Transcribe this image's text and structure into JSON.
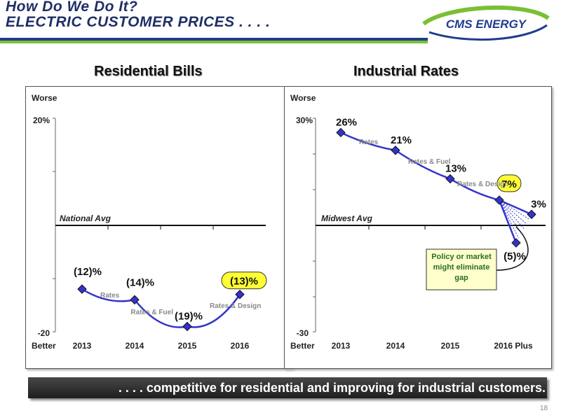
{
  "header": {
    "line1": "How Do We Do It?",
    "line2": "ELECTRIC CUSTOMER PRICES . . . ."
  },
  "logo": {
    "text": "CMS ENERGY"
  },
  "footer": {
    "banner": ". . . . competitive for residential and improving for industrial customers.",
    "page_number": "18"
  },
  "colors": {
    "navy": "#1f2f66",
    "green": "#7bbf34",
    "line": "#3333cc",
    "highlight": "#ffff33"
  },
  "chart_data": [
    {
      "type": "line",
      "title": "Residential Bills",
      "worse_label": "Worse",
      "better_label": "Better",
      "reference_label": "National Avg",
      "ylim": [
        -20,
        20
      ],
      "y_ticks": [
        "20%",
        "-20"
      ],
      "categories": [
        "2013",
        "2014",
        "2015",
        "2016"
      ],
      "points": [
        {
          "label": "(12)%",
          "value": -12
        },
        {
          "label": "(14)%",
          "value": -14
        },
        {
          "label": "(19)%",
          "value": -19
        },
        {
          "label": "(13)%",
          "value": -13,
          "highlight": true
        }
      ],
      "annotations": [
        "Rates",
        "Rates & Fuel",
        "Rates & Design"
      ]
    },
    {
      "type": "line",
      "title": "Industrial Rates",
      "worse_label": "Worse",
      "better_label": "Better",
      "reference_label": "Midwest Avg",
      "ylim": [
        -30,
        30
      ],
      "y_ticks": [
        "30%",
        "-30"
      ],
      "categories": [
        "2013",
        "2014",
        "2015",
        "2016 Plus"
      ],
      "points": [
        {
          "label": "26%",
          "value": 26
        },
        {
          "label": "21%",
          "value": 21
        },
        {
          "label": "13%",
          "value": 13
        },
        {
          "label": "7%",
          "value": 7,
          "highlight": true
        }
      ],
      "branches": [
        {
          "label": "3%",
          "value": 3
        },
        {
          "label": "(5)%",
          "value": -5
        }
      ],
      "annotations": [
        "Rates",
        "Rates & Fuel",
        "Rates & Design"
      ],
      "callout": "Policy or market might eliminate gap"
    }
  ]
}
